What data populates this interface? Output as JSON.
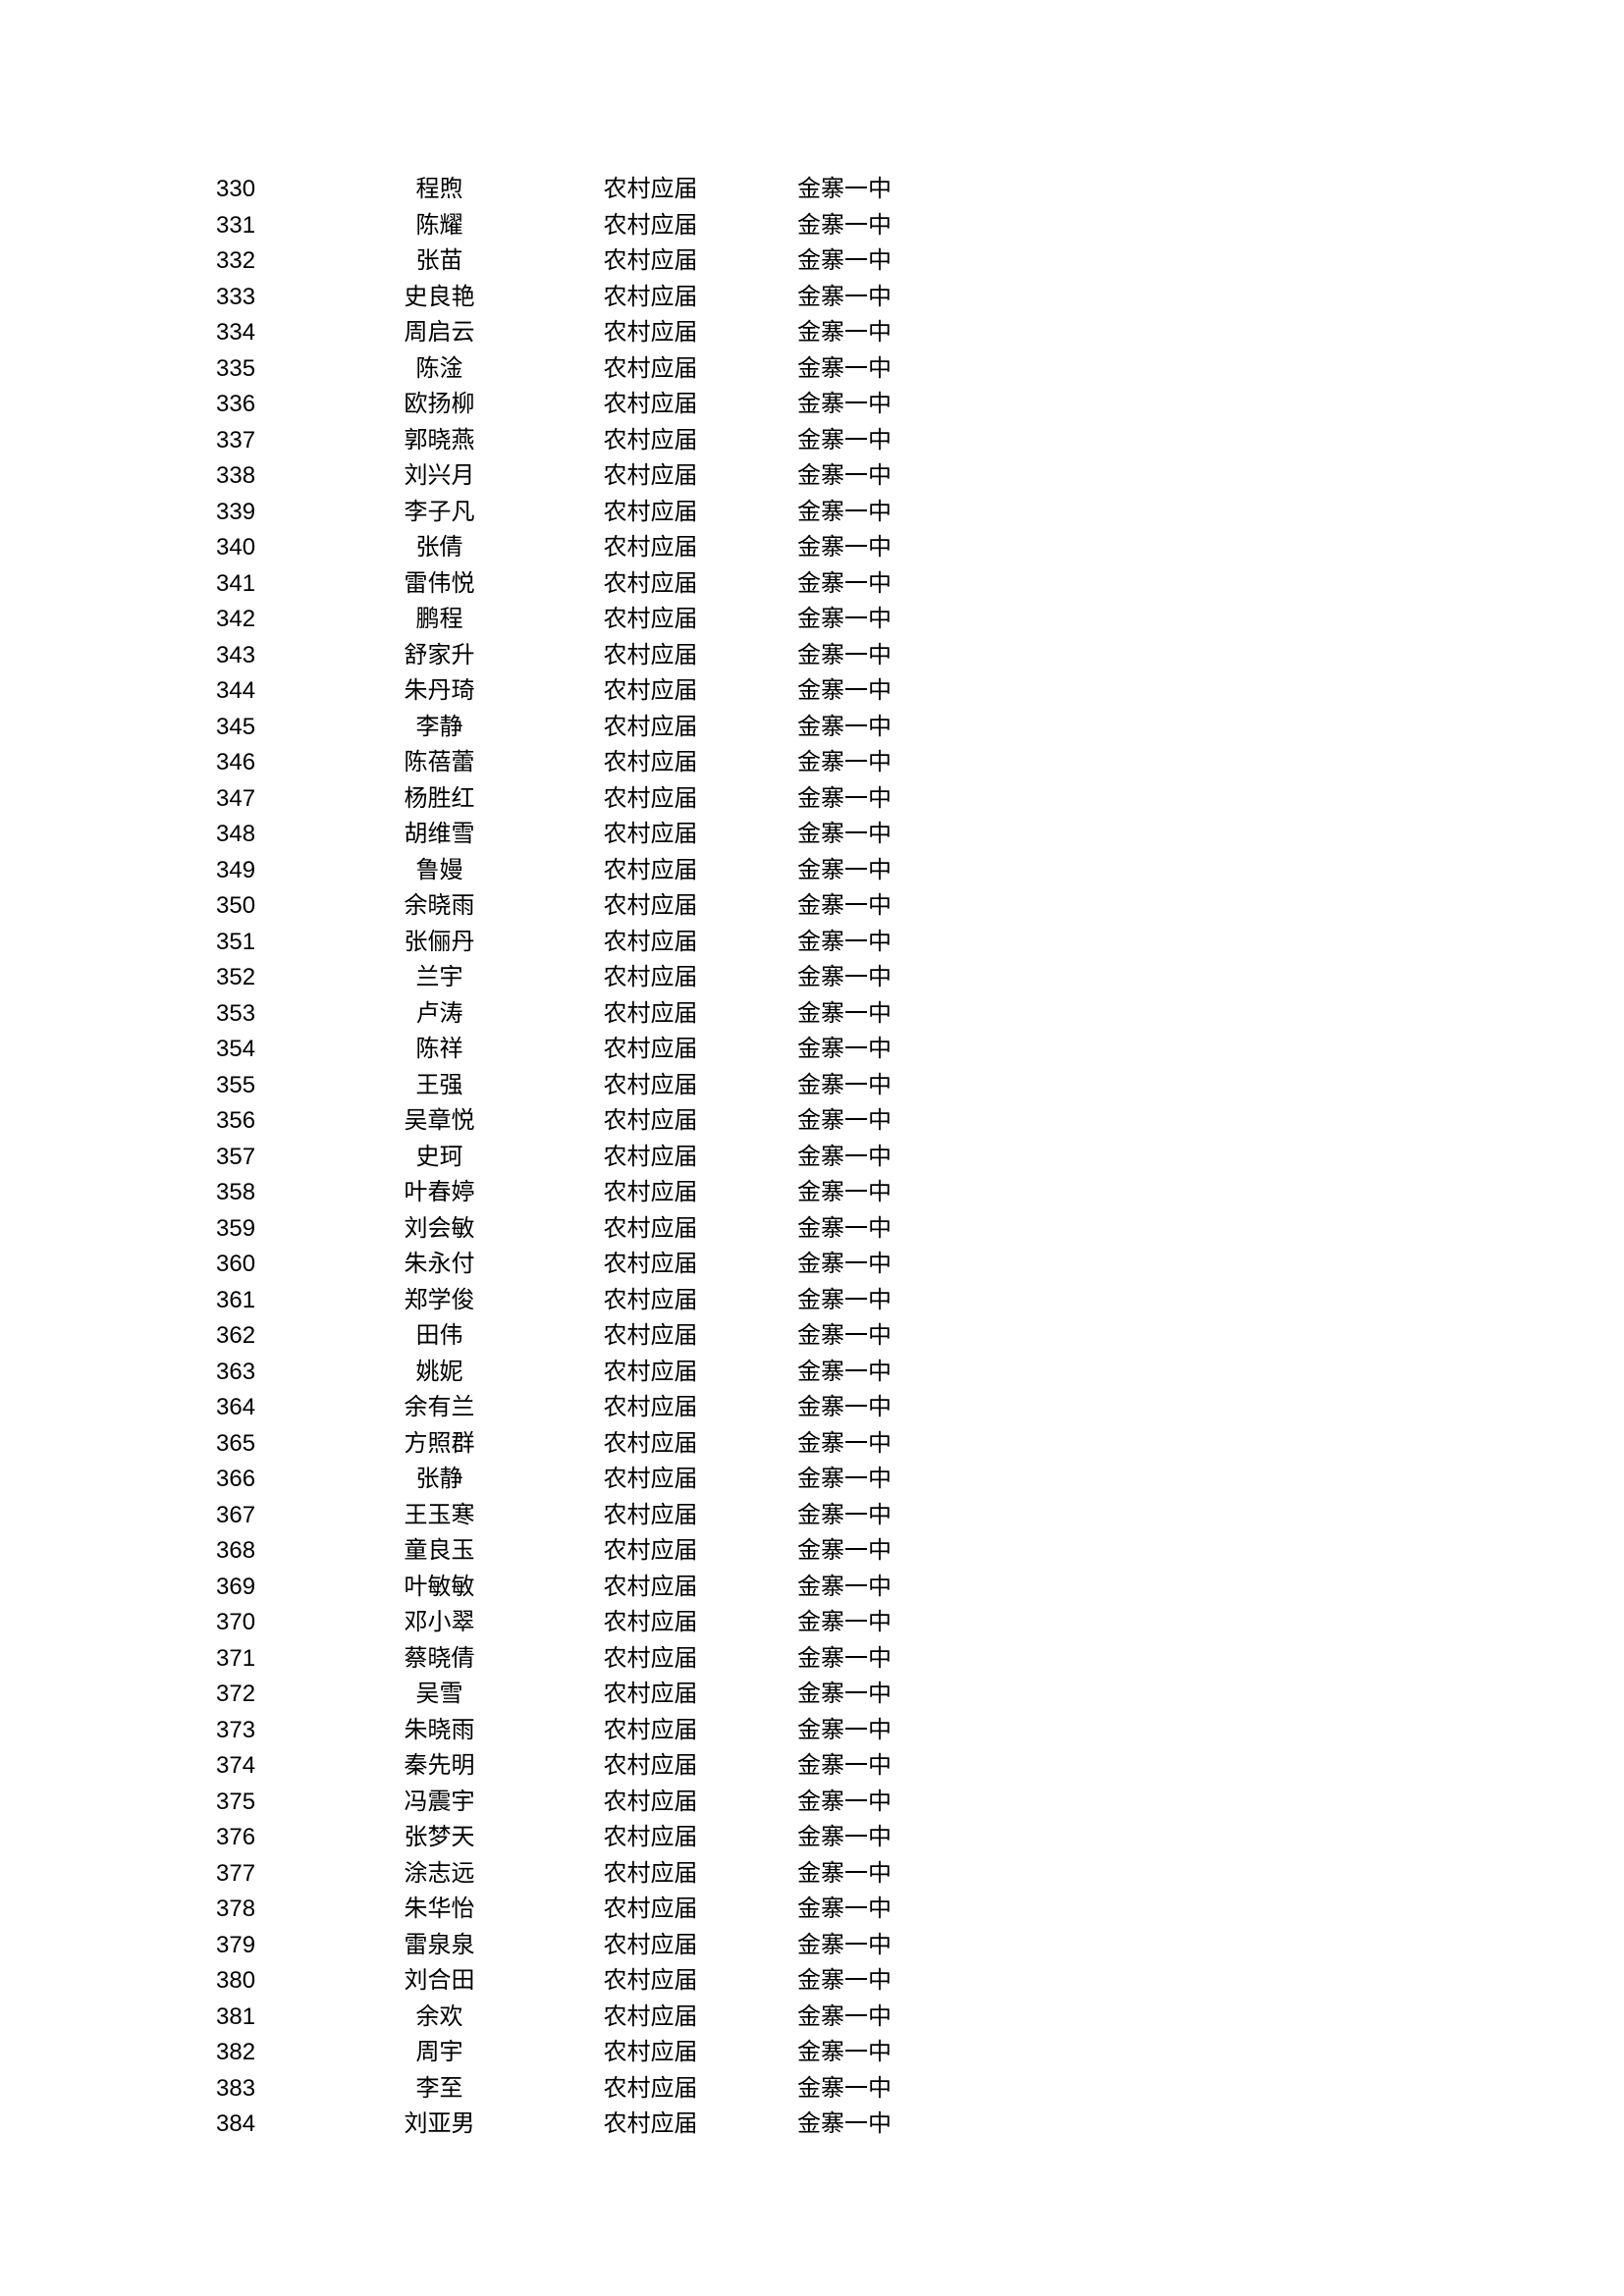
{
  "rows": [
    {
      "num": "330",
      "name": "程煦",
      "category": "农村应届",
      "school": "金寨一中"
    },
    {
      "num": "331",
      "name": "陈耀",
      "category": "农村应届",
      "school": "金寨一中"
    },
    {
      "num": "332",
      "name": "张苗",
      "category": "农村应届",
      "school": "金寨一中"
    },
    {
      "num": "333",
      "name": "史良艳",
      "category": "农村应届",
      "school": "金寨一中"
    },
    {
      "num": "334",
      "name": "周启云",
      "category": "农村应届",
      "school": "金寨一中"
    },
    {
      "num": "335",
      "name": "陈淦",
      "category": "农村应届",
      "school": "金寨一中"
    },
    {
      "num": "336",
      "name": "欧扬柳",
      "category": "农村应届",
      "school": "金寨一中"
    },
    {
      "num": "337",
      "name": "郭晓燕",
      "category": "农村应届",
      "school": "金寨一中"
    },
    {
      "num": "338",
      "name": "刘兴月",
      "category": "农村应届",
      "school": "金寨一中"
    },
    {
      "num": "339",
      "name": "李子凡",
      "category": "农村应届",
      "school": "金寨一中"
    },
    {
      "num": "340",
      "name": "张倩",
      "category": "农村应届",
      "school": "金寨一中"
    },
    {
      "num": "341",
      "name": "雷伟悦",
      "category": "农村应届",
      "school": "金寨一中"
    },
    {
      "num": "342",
      "name": "鹏程",
      "category": "农村应届",
      "school": "金寨一中"
    },
    {
      "num": "343",
      "name": "舒家升",
      "category": "农村应届",
      "school": "金寨一中"
    },
    {
      "num": "344",
      "name": "朱丹琦",
      "category": "农村应届",
      "school": "金寨一中"
    },
    {
      "num": "345",
      "name": "李静",
      "category": "农村应届",
      "school": "金寨一中"
    },
    {
      "num": "346",
      "name": "陈蓓蕾",
      "category": "农村应届",
      "school": "金寨一中"
    },
    {
      "num": "347",
      "name": "杨胜红",
      "category": "农村应届",
      "school": "金寨一中"
    },
    {
      "num": "348",
      "name": "胡维雪",
      "category": "农村应届",
      "school": "金寨一中"
    },
    {
      "num": "349",
      "name": "鲁嫚",
      "category": "农村应届",
      "school": "金寨一中"
    },
    {
      "num": "350",
      "name": "余晓雨",
      "category": "农村应届",
      "school": "金寨一中"
    },
    {
      "num": "351",
      "name": "张俪丹",
      "category": "农村应届",
      "school": "金寨一中"
    },
    {
      "num": "352",
      "name": "兰宇",
      "category": "农村应届",
      "school": "金寨一中"
    },
    {
      "num": "353",
      "name": "卢涛",
      "category": "农村应届",
      "school": "金寨一中"
    },
    {
      "num": "354",
      "name": "陈祥",
      "category": "农村应届",
      "school": "金寨一中"
    },
    {
      "num": "355",
      "name": "王强",
      "category": "农村应届",
      "school": "金寨一中"
    },
    {
      "num": "356",
      "name": "吴章悦",
      "category": "农村应届",
      "school": "金寨一中"
    },
    {
      "num": "357",
      "name": "史珂",
      "category": "农村应届",
      "school": "金寨一中"
    },
    {
      "num": "358",
      "name": "叶春婷",
      "category": "农村应届",
      "school": "金寨一中"
    },
    {
      "num": "359",
      "name": "刘会敏",
      "category": "农村应届",
      "school": "金寨一中"
    },
    {
      "num": "360",
      "name": "朱永付",
      "category": "农村应届",
      "school": "金寨一中"
    },
    {
      "num": "361",
      "name": "郑学俊",
      "category": "农村应届",
      "school": "金寨一中"
    },
    {
      "num": "362",
      "name": "田伟",
      "category": "农村应届",
      "school": "金寨一中"
    },
    {
      "num": "363",
      "name": "姚妮",
      "category": "农村应届",
      "school": "金寨一中"
    },
    {
      "num": "364",
      "name": "余有兰",
      "category": "农村应届",
      "school": "金寨一中"
    },
    {
      "num": "365",
      "name": "方照群",
      "category": "农村应届",
      "school": "金寨一中"
    },
    {
      "num": "366",
      "name": "张静",
      "category": "农村应届",
      "school": "金寨一中"
    },
    {
      "num": "367",
      "name": "王玉寒",
      "category": "农村应届",
      "school": "金寨一中"
    },
    {
      "num": "368",
      "name": "童良玉",
      "category": "农村应届",
      "school": "金寨一中"
    },
    {
      "num": "369",
      "name": "叶敏敏",
      "category": "农村应届",
      "school": "金寨一中"
    },
    {
      "num": "370",
      "name": "邓小翠",
      "category": "农村应届",
      "school": "金寨一中"
    },
    {
      "num": "371",
      "name": "蔡晓倩",
      "category": "农村应届",
      "school": "金寨一中"
    },
    {
      "num": "372",
      "name": "吴雪",
      "category": "农村应届",
      "school": "金寨一中"
    },
    {
      "num": "373",
      "name": "朱晓雨",
      "category": "农村应届",
      "school": "金寨一中"
    },
    {
      "num": "374",
      "name": "秦先明",
      "category": "农村应届",
      "school": "金寨一中"
    },
    {
      "num": "375",
      "name": "冯震宇",
      "category": "农村应届",
      "school": "金寨一中"
    },
    {
      "num": "376",
      "name": "张梦天",
      "category": "农村应届",
      "school": "金寨一中"
    },
    {
      "num": "377",
      "name": "涂志远",
      "category": "农村应届",
      "school": "金寨一中"
    },
    {
      "num": "378",
      "name": "朱华怡",
      "category": "农村应届",
      "school": "金寨一中"
    },
    {
      "num": "379",
      "name": "雷泉泉",
      "category": "农村应届",
      "school": "金寨一中"
    },
    {
      "num": "380",
      "name": "刘合田",
      "category": "农村应届",
      "school": "金寨一中"
    },
    {
      "num": "381",
      "name": "余欢",
      "category": "农村应届",
      "school": "金寨一中"
    },
    {
      "num": "382",
      "name": "周宇",
      "category": "农村应届",
      "school": "金寨一中"
    },
    {
      "num": "383",
      "name": "李至",
      "category": "农村应届",
      "school": "金寨一中"
    },
    {
      "num": "384",
      "name": "刘亚男",
      "category": "农村应届",
      "school": "金寨一中"
    }
  ]
}
